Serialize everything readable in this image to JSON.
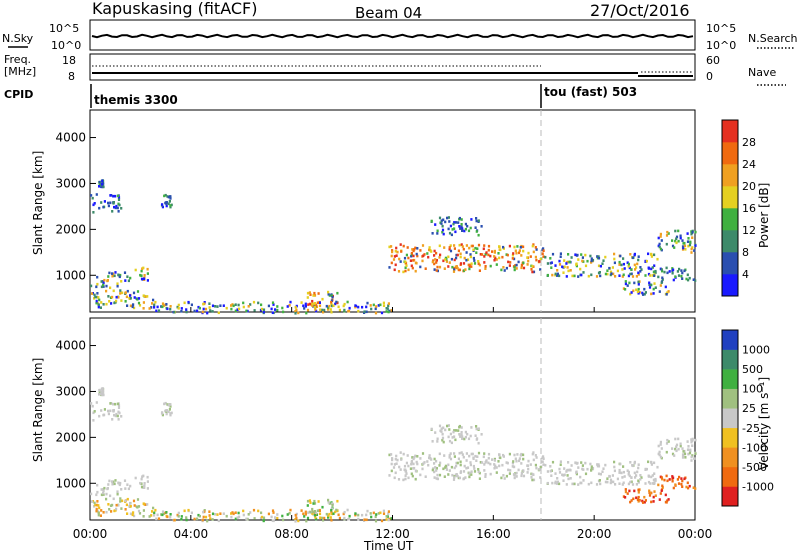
{
  "header": {
    "station": "Kapuskasing (fitACF)",
    "beam": "Beam 04",
    "date": "27/Oct/2016"
  },
  "chart_data": {
    "type": "heatmap",
    "x_axis": {
      "label": "Time UT",
      "ticks": [
        "00:00",
        "04:00",
        "08:00",
        "12:00",
        "16:00",
        "20:00",
        "00:00"
      ],
      "range_hours": [
        0,
        24
      ]
    },
    "aux_panels": {
      "nsky_label": "N.Sky",
      "nsky_ticks": [
        "10^5",
        "10^0"
      ],
      "nsearch_label": "N.Search",
      "nsearch_ticks": [
        "10^5",
        "10^0"
      ],
      "freq_label_1": "Freq.",
      "freq_label_2": "[MHz]",
      "freq_ticks": [
        "18",
        "8"
      ],
      "nave_label": "Nave",
      "nave_ticks": [
        "60",
        "0"
      ],
      "cpid_label": "CPID",
      "cpid_entries": [
        {
          "text": "themis 3300",
          "start_hour": 0
        },
        {
          "text": "tou (fast) 503",
          "start_hour": 18
        }
      ]
    },
    "power_panel": {
      "ylabel": "Slant Range [km]",
      "yticks": [
        1000,
        2000,
        3000,
        4000
      ],
      "yrange": [
        200,
        4600
      ],
      "colorbar_label": "Power [dB]",
      "colorbar_ticks": [
        "4",
        "8",
        "12",
        "16",
        "20",
        "24",
        "28"
      ],
      "colors": [
        "#1a1aff",
        "#2a4fb0",
        "#3d8a6a",
        "#40b040",
        "#e5d020",
        "#f0a020",
        "#f06a10",
        "#e53020"
      ]
    },
    "velocity_panel": {
      "ylabel": "Slant Range [km]",
      "yticks": [
        1000,
        2000,
        3000,
        4000
      ],
      "yrange": [
        200,
        4600
      ],
      "colorbar_label": "Velocity [m s⁻¹]",
      "colorbar_ticks": [
        "1000",
        "500",
        "100",
        "25",
        "-25",
        "-100",
        "-500",
        "-1000"
      ],
      "colors": [
        "#2040c0",
        "#3d8a6a",
        "#40b040",
        "#a0c080",
        "#c8c8c8",
        "#f0c020",
        "#f09020",
        "#f06a10",
        "#e02020"
      ]
    },
    "scatter_regions": [
      {
        "t": [
          0,
          1.2
        ],
        "r": [
          2400,
          2800
        ],
        "power": "low",
        "vel": "zero"
      },
      {
        "t": [
          0.3,
          0.5
        ],
        "r": [
          2950,
          3100
        ],
        "power": "low",
        "vel": "zero"
      },
      {
        "t": [
          0,
          1.2
        ],
        "r": [
          750,
          1100
        ],
        "power": "mid",
        "vel": "zero"
      },
      {
        "t": [
          1.3,
          2.3
        ],
        "r": [
          900,
          1200
        ],
        "power": "mid",
        "vel": "zero"
      },
      {
        "t": [
          2.8,
          3.2
        ],
        "r": [
          2500,
          2800
        ],
        "power": "low",
        "vel": "zero"
      },
      {
        "t": [
          0,
          2.5
        ],
        "r": [
          300,
          700
        ],
        "power": "mid",
        "vel": "slow_away"
      },
      {
        "t": [
          2.5,
          12
        ],
        "r": [
          200,
          450
        ],
        "power": "mid",
        "vel": "mixed"
      },
      {
        "t": [
          8.5,
          9.8
        ],
        "r": [
          300,
          700
        ],
        "power": "high",
        "vel": "slow_toward"
      },
      {
        "t": [
          11.8,
          18
        ],
        "r": [
          1100,
          1700
        ],
        "power": "high",
        "vel": "zero"
      },
      {
        "t": [
          18,
          22.5
        ],
        "r": [
          1000,
          1500
        ],
        "power": "mid",
        "vel": "zero"
      },
      {
        "t": [
          22.5,
          24
        ],
        "r": [
          1500,
          2000
        ],
        "power": "mid",
        "vel": "zero"
      },
      {
        "t": [
          21,
          23
        ],
        "r": [
          600,
          900
        ],
        "power": "mid",
        "vel": "away_fast"
      },
      {
        "t": [
          22.5,
          24
        ],
        "r": [
          900,
          1200
        ],
        "power": "low",
        "vel": "away_fast"
      },
      {
        "t": [
          13.5,
          15.5
        ],
        "r": [
          1900,
          2300
        ],
        "power": "low",
        "vel": "zero"
      }
    ]
  }
}
